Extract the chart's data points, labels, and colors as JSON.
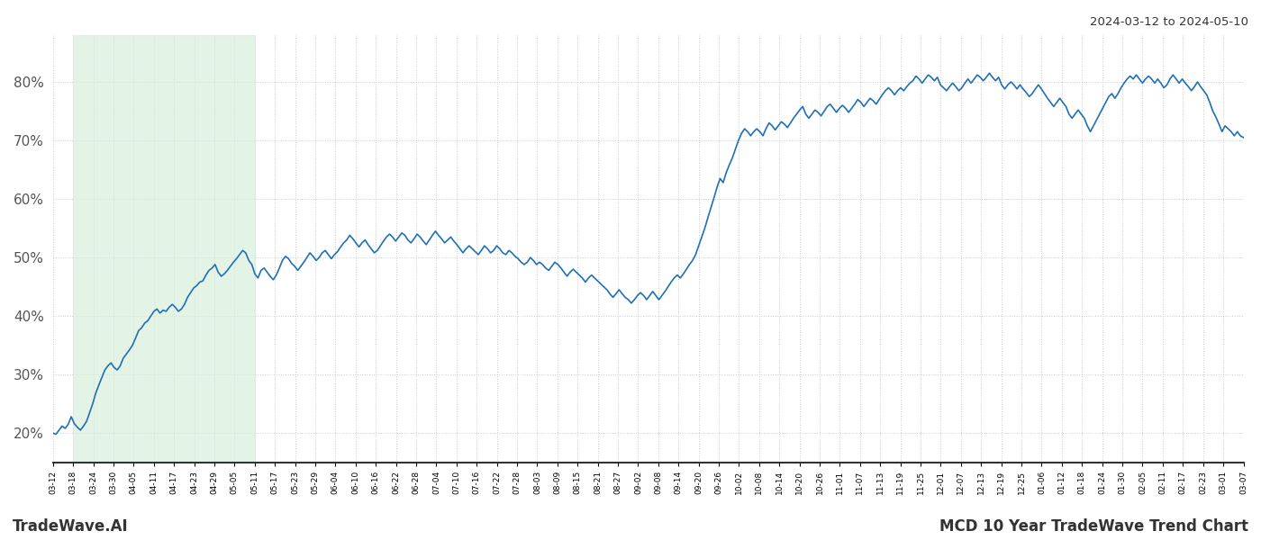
{
  "title_top_right": "2024-03-12 to 2024-05-10",
  "title_bottom_left": "TradeWave.AI",
  "title_bottom_right": "MCD 10 Year TradeWave Trend Chart",
  "line_color": "#2070b4",
  "line_width": 1.2,
  "highlight_color": "#d4edda",
  "highlight_alpha": 0.65,
  "background_color": "#ffffff",
  "grid_color": "#cccccc",
  "grid_linestyle": "dotted",
  "ylim": [
    15,
    88
  ],
  "yticks": [
    20,
    30,
    40,
    50,
    60,
    70,
    80
  ],
  "x_labels": [
    "03-12",
    "03-18",
    "03-24",
    "03-30",
    "04-05",
    "04-11",
    "04-17",
    "04-23",
    "04-29",
    "05-05",
    "05-11",
    "05-17",
    "05-23",
    "05-29",
    "06-04",
    "06-10",
    "06-16",
    "06-22",
    "06-28",
    "07-04",
    "07-10",
    "07-16",
    "07-22",
    "07-28",
    "08-03",
    "08-09",
    "08-15",
    "08-21",
    "08-27",
    "09-02",
    "09-08",
    "09-14",
    "09-20",
    "09-26",
    "10-02",
    "10-08",
    "10-14",
    "10-20",
    "10-26",
    "11-01",
    "11-07",
    "11-13",
    "11-19",
    "11-25",
    "12-01",
    "12-07",
    "12-13",
    "12-19",
    "12-25",
    "01-06",
    "01-12",
    "01-18",
    "01-24",
    "01-30",
    "02-05",
    "02-11",
    "02-17",
    "02-23",
    "03-01",
    "03-07"
  ],
  "highlight_label_start": "03-18",
  "highlight_label_end": "05-11",
  "y_values": [
    20.0,
    19.8,
    20.5,
    21.2,
    20.8,
    21.5,
    22.8,
    21.6,
    21.0,
    20.5,
    21.2,
    22.0,
    23.5,
    25.0,
    26.8,
    28.2,
    29.5,
    30.8,
    31.5,
    32.0,
    31.2,
    30.8,
    31.5,
    32.8,
    33.5,
    34.2,
    35.0,
    36.2,
    37.5,
    38.0,
    38.8,
    39.2,
    40.0,
    40.8,
    41.2,
    40.5,
    41.0,
    40.8,
    41.5,
    42.0,
    41.5,
    40.8,
    41.2,
    42.0,
    43.2,
    44.0,
    44.8,
    45.2,
    45.8,
    46.0,
    47.0,
    47.8,
    48.2,
    48.8,
    47.5,
    46.8,
    47.2,
    47.8,
    48.5,
    49.2,
    49.8,
    50.5,
    51.2,
    50.8,
    49.5,
    48.8,
    47.2,
    46.5,
    47.8,
    48.2,
    47.5,
    46.8,
    46.2,
    47.0,
    48.2,
    49.5,
    50.2,
    49.8,
    49.0,
    48.5,
    47.8,
    48.5,
    49.2,
    50.0,
    50.8,
    50.2,
    49.5,
    50.0,
    50.8,
    51.2,
    50.5,
    49.8,
    50.5,
    51.0,
    51.8,
    52.5,
    53.0,
    53.8,
    53.2,
    52.5,
    51.8,
    52.5,
    53.0,
    52.2,
    51.5,
    50.8,
    51.2,
    52.0,
    52.8,
    53.5,
    54.0,
    53.5,
    52.8,
    53.5,
    54.2,
    53.8,
    53.0,
    52.5,
    53.2,
    54.0,
    53.5,
    52.8,
    52.2,
    53.0,
    53.8,
    54.5,
    53.8,
    53.2,
    52.5,
    53.0,
    53.5,
    52.8,
    52.2,
    51.5,
    50.8,
    51.5,
    52.0,
    51.5,
    51.0,
    50.5,
    51.2,
    52.0,
    51.5,
    50.8,
    51.2,
    52.0,
    51.5,
    50.8,
    50.5,
    51.2,
    50.8,
    50.2,
    49.8,
    49.2,
    48.8,
    49.2,
    50.0,
    49.5,
    48.8,
    49.2,
    48.8,
    48.2,
    47.8,
    48.5,
    49.2,
    48.8,
    48.2,
    47.5,
    46.8,
    47.5,
    48.0,
    47.5,
    47.0,
    46.5,
    45.8,
    46.5,
    47.0,
    46.5,
    46.0,
    45.5,
    45.0,
    44.5,
    43.8,
    43.2,
    43.8,
    44.5,
    43.8,
    43.2,
    42.8,
    42.2,
    42.8,
    43.5,
    44.0,
    43.5,
    42.8,
    43.5,
    44.2,
    43.5,
    42.8,
    43.5,
    44.2,
    45.0,
    45.8,
    46.5,
    47.0,
    46.5,
    47.2,
    48.0,
    48.8,
    49.5,
    50.5,
    52.0,
    53.5,
    55.0,
    56.8,
    58.5,
    60.2,
    62.0,
    63.5,
    62.8,
    64.5,
    65.8,
    67.0,
    68.5,
    70.0,
    71.2,
    72.0,
    71.5,
    70.8,
    71.5,
    72.0,
    71.5,
    70.8,
    72.0,
    73.0,
    72.5,
    71.8,
    72.5,
    73.2,
    72.8,
    72.2,
    73.0,
    73.8,
    74.5,
    75.2,
    75.8,
    74.5,
    73.8,
    74.5,
    75.2,
    74.8,
    74.2,
    75.0,
    75.8,
    76.2,
    75.5,
    74.8,
    75.5,
    76.0,
    75.5,
    74.8,
    75.5,
    76.2,
    77.0,
    76.5,
    75.8,
    76.5,
    77.2,
    76.8,
    76.2,
    77.0,
    77.8,
    78.5,
    79.0,
    78.5,
    77.8,
    78.5,
    79.0,
    78.5,
    79.2,
    79.8,
    80.2,
    81.0,
    80.5,
    79.8,
    80.5,
    81.2,
    80.8,
    80.2,
    80.8,
    79.5,
    79.0,
    78.5,
    79.2,
    79.8,
    79.2,
    78.5,
    79.0,
    79.8,
    80.5,
    79.8,
    80.5,
    81.2,
    80.8,
    80.2,
    80.8,
    81.5,
    80.8,
    80.2,
    80.8,
    79.5,
    78.8,
    79.5,
    80.0,
    79.5,
    78.8,
    79.5,
    78.8,
    78.2,
    77.5,
    78.0,
    78.8,
    79.5,
    78.8,
    78.0,
    77.2,
    76.5,
    75.8,
    76.5,
    77.2,
    76.5,
    75.8,
    74.5,
    73.8,
    74.5,
    75.2,
    74.5,
    73.8,
    72.5,
    71.5,
    72.5,
    73.5,
    74.5,
    75.5,
    76.5,
    77.5,
    78.0,
    77.2,
    78.0,
    79.0,
    79.8,
    80.5,
    81.0,
    80.5,
    81.2,
    80.5,
    79.8,
    80.5,
    81.0,
    80.5,
    79.8,
    80.5,
    79.8,
    79.0,
    79.5,
    80.5,
    81.2,
    80.5,
    79.8,
    80.5,
    79.8,
    79.2,
    78.5,
    79.2,
    80.0,
    79.2,
    78.5,
    77.8,
    76.5,
    75.0,
    74.0,
    72.8,
    71.5,
    72.5,
    72.0,
    71.5,
    70.8,
    71.5,
    70.8,
    70.5
  ]
}
